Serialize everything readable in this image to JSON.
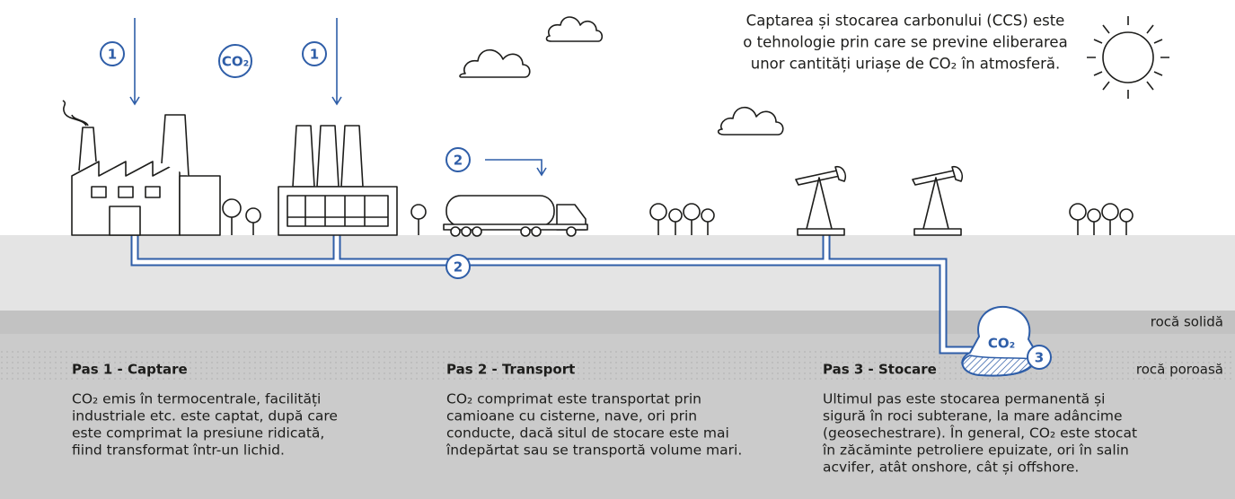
{
  "intro": {
    "lines": [
      "Captarea și stocarea carbonului (CCS) este",
      "o tehnologie prin care se previne eliberarea",
      "unor cantități uriașe de CO₂ în atmosferă."
    ]
  },
  "badges": {
    "capture_left": "1",
    "co2": "CO₂",
    "capture_right": "1",
    "transport_truck": "2",
    "transport_pipe": "2",
    "storage": "3",
    "reservoir": "CO₂"
  },
  "layers": {
    "solid": "rocă solidă",
    "porous": "rocă poroasă"
  },
  "steps": [
    {
      "title": "Pas 1 - Captare",
      "lines": [
        "CO₂ emis în termocentrale, facilități",
        "industriale etc. este captat, după care",
        "este comprimat la presiune ridicată,",
        "fiind transformat într-un lichid."
      ]
    },
    {
      "title": "Pas 2 - Transport",
      "lines": [
        "CO₂ comprimat este transportat prin",
        "camioane cu cisterne, nave, ori prin",
        "conducte, dacă situl de stocare este mai",
        "îndepărtat sau se transportă volume mari."
      ]
    },
    {
      "title": "Pas 3 - Stocare",
      "lines": [
        "Ultimul pas este stocarea permanentă și",
        "sigură în roci subterane, la mare adâncime",
        "(geosechestrare). În general, CO₂ este stocat",
        "în zăcăminte petroliere epuizate, ori în salin",
        "acvifer, atât onshore, cât și offshore."
      ]
    }
  ]
}
